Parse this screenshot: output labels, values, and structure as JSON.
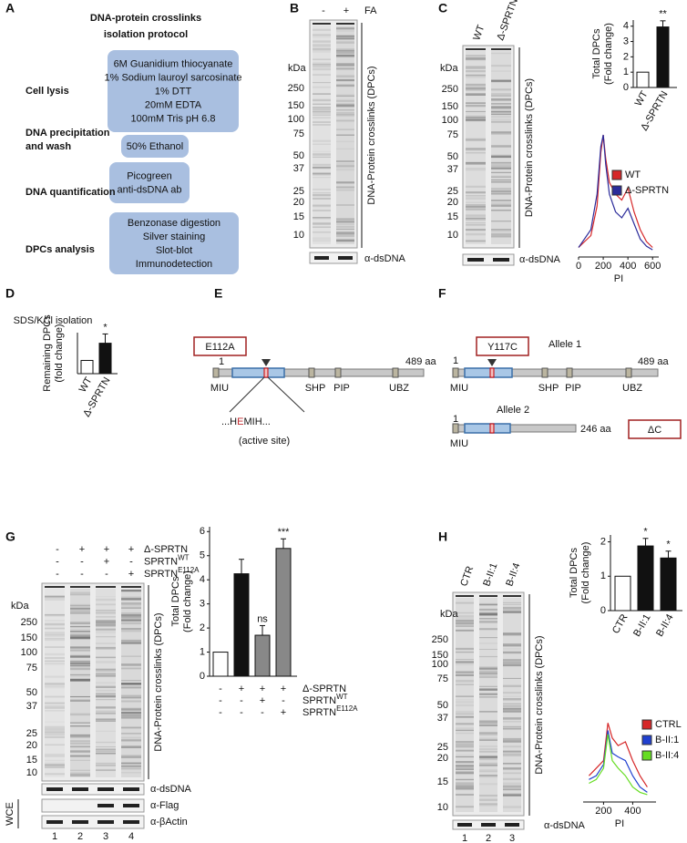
{
  "panels": {
    "a": {
      "label": "A",
      "title": [
        "DNA-protein crosslinks",
        "isolation protocol"
      ],
      "steps": [
        {
          "name": [
            "Cell lysis"
          ],
          "items": [
            "6M Guanidium thiocyanate",
            "1% Sodium lauroyl sarcosinate",
            "1% DTT",
            "20mM EDTA",
            "100mM Tris pH 6.8"
          ]
        },
        {
          "name": [
            "DNA precipitation",
            "and wash"
          ],
          "items": [
            "50% Ethanol"
          ]
        },
        {
          "name": [
            "DNA quantification"
          ],
          "items": [
            "Picogreen",
            "anti-dsDNA ab"
          ]
        },
        {
          "name": [
            "DPCs analysis"
          ],
          "items": [
            "Benzonase digestion",
            "Silver staining",
            "Slot-blot",
            "Immunodetection"
          ]
        }
      ]
    },
    "b": {
      "label": "B",
      "treatment": "FA",
      "lanes": [
        "-",
        "+"
      ],
      "kda": "kDa",
      "markers": [
        "250",
        "150",
        "100",
        "75",
        "50",
        "37",
        "25",
        "20",
        "15",
        "10"
      ],
      "side_label": "DNA-Protein crosslinks (DPCs)",
      "loading": "α-dsDNA"
    },
    "c": {
      "label": "C",
      "lanes": [
        "WT",
        "Δ-SPRTN"
      ],
      "kda": "kDa",
      "markers": [
        "250",
        "150",
        "100",
        "75",
        "50",
        "37",
        "25",
        "20",
        "15",
        "10"
      ],
      "side_label": "DNA-Protein crosslinks (DPCs)",
      "loading": "α-dsDNA"
    },
    "d": {
      "label": "D"
    },
    "e": {
      "label": "E",
      "mutation": "E112A",
      "start": "1",
      "length": "489 aa",
      "domains": [
        "MIU",
        "SHP",
        "PIP",
        "UBZ"
      ],
      "sequence": [
        "...H",
        "E",
        "MIH..."
      ],
      "site": "(active site)"
    },
    "f": {
      "label": "F",
      "mutation": "Y117C",
      "allele1": {
        "name": "Allele 1",
        "start": "1",
        "length": "489 aa",
        "domains": [
          "MIU",
          "SHP",
          "PIP",
          "UBZ"
        ]
      },
      "allele2": {
        "name": "Allele 2",
        "start": "1",
        "length": "246 aa",
        "domains": [
          "MIU"
        ],
        "tag": "ΔC"
      }
    },
    "g": {
      "label": "G",
      "conditions": [
        {
          "name": "Δ-SPRTN",
          "signs": [
            "-",
            "+",
            "+",
            "+"
          ]
        },
        {
          "name": "SPRTN",
          "sup": "WT",
          "signs": [
            "-",
            "-",
            "+",
            "-"
          ]
        },
        {
          "name": "SPRTN",
          "sup": "E112A",
          "signs": [
            "-",
            "-",
            "-",
            "+"
          ]
        }
      ],
      "kda": "kDa",
      "markers": [
        "250",
        "150",
        "100",
        "75",
        "50",
        "37",
        "25",
        "20",
        "15",
        "10"
      ],
      "side_label": "DNA-Protein crosslinks (DPCs)",
      "blots": [
        "α-dsDNA",
        "α-Flag",
        "α-βActin"
      ],
      "wce": "WCE",
      "lane_numbers": [
        "1",
        "2",
        "3",
        "4"
      ]
    },
    "h": {
      "label": "H",
      "lanes": [
        "CTR",
        "B-II:1",
        "B-II:4"
      ],
      "kda": "kDa",
      "markers": [
        "250",
        "150",
        "100",
        "75",
        "50",
        "37",
        "25",
        "20",
        "15",
        "10"
      ],
      "side_label": "DNA-Protein crosslinks (DPCs)",
      "loading": "α-dsDNA",
      "lane_numbers": [
        "1",
        "2",
        "3"
      ]
    }
  },
  "chart_data": [
    {
      "type": "bar",
      "ylabel": [
        "Total DPCs",
        "(Fold change)"
      ],
      "categories": [
        "WT",
        "Δ-SPRTN"
      ],
      "values": [
        1,
        3.95
      ],
      "errors": [
        null,
        0.4
      ],
      "annotations": [
        null,
        "**"
      ],
      "colors": [
        "#ffffff",
        "#111111"
      ],
      "ylim": [
        0,
        4.4
      ],
      "yticks": [
        0,
        1,
        2,
        3,
        4
      ]
    },
    {
      "type": "line",
      "xlabel": "PI",
      "x": [
        0,
        100,
        150,
        180,
        200,
        220,
        250,
        300,
        350,
        400,
        450,
        500,
        550,
        600
      ],
      "series": [
        {
          "name": "WT",
          "color": "#d62728",
          "values": [
            0.05,
            0.15,
            0.4,
            0.85,
            1.0,
            0.8,
            0.6,
            0.5,
            0.45,
            0.55,
            0.35,
            0.2,
            0.1,
            0.05
          ]
        },
        {
          "name": "Δ-SPRTN",
          "color": "#2b2b9a",
          "values": [
            0.05,
            0.2,
            0.5,
            0.9,
            1.0,
            0.75,
            0.5,
            0.35,
            0.3,
            0.38,
            0.25,
            0.12,
            0.06,
            0.03
          ]
        }
      ],
      "xlim": [
        0,
        650
      ],
      "xticks": [
        0,
        200,
        400,
        600
      ],
      "ylim": [
        0,
        1.1
      ]
    },
    {
      "type": "bar",
      "title": "SDS/KCl isolation",
      "ylabel": [
        "Remaining DPCs",
        "(fold change)"
      ],
      "categories": [
        "WT",
        "Δ-SPRTN"
      ],
      "values": [
        1,
        2.3
      ],
      "errors": [
        null,
        0.7
      ],
      "annotations": [
        null,
        "*"
      ],
      "colors": [
        "#ffffff",
        "#111111"
      ],
      "ylim": [
        0,
        3.1
      ]
    },
    {
      "type": "bar",
      "ylabel": [
        "Total DPCs",
        "(Fold change)"
      ],
      "categories": [
        null,
        null,
        null,
        null
      ],
      "values": [
        1,
        4.25,
        1.7,
        5.3
      ],
      "errors": [
        null,
        0.6,
        0.4,
        0.4
      ],
      "annotations": [
        null,
        null,
        "ns",
        "***"
      ],
      "colors": [
        "#ffffff",
        "#111111",
        "#888888",
        "#888888"
      ],
      "ylim": [
        0,
        6.2
      ],
      "yticks": [
        0,
        1,
        2,
        3,
        4,
        5,
        6
      ],
      "conditions": [
        {
          "name": "Δ-SPRTN",
          "signs": [
            "-",
            "+",
            "+",
            "+"
          ]
        },
        {
          "name": "SPRTN",
          "sup": "WT",
          "signs": [
            "-",
            "-",
            "+",
            "-"
          ]
        },
        {
          "name": "SPRTN",
          "sup": "E112A",
          "signs": [
            "-",
            "-",
            "-",
            "+"
          ]
        }
      ]
    },
    {
      "type": "bar",
      "ylabel": [
        "Total DPCs",
        "(Fold change)"
      ],
      "categories": [
        "CTR",
        "B-II:1",
        "B-II:4"
      ],
      "values": [
        1,
        1.88,
        1.53
      ],
      "errors": [
        null,
        0.22,
        0.2
      ],
      "annotations": [
        null,
        "*",
        "*"
      ],
      "colors": [
        "#ffffff",
        "#111111",
        "#111111"
      ],
      "ylim": [
        0,
        2.2
      ],
      "yticks": [
        0,
        1,
        2
      ]
    },
    {
      "type": "line",
      "xlabel": "PI",
      "x": [
        100,
        150,
        200,
        230,
        260,
        300,
        350,
        400,
        450,
        500
      ],
      "series": [
        {
          "name": "CTRL",
          "color": "#d62728",
          "values": [
            0.3,
            0.4,
            0.5,
            1.0,
            0.8,
            0.7,
            0.75,
            0.5,
            0.3,
            0.15
          ]
        },
        {
          "name": "B-II:1",
          "color": "#2040d0",
          "values": [
            0.25,
            0.3,
            0.45,
            0.9,
            0.6,
            0.55,
            0.5,
            0.3,
            0.15,
            0.08
          ]
        },
        {
          "name": "B-II:4",
          "color": "#66dd22",
          "values": [
            0.2,
            0.25,
            0.4,
            0.85,
            0.5,
            0.4,
            0.3,
            0.15,
            0.08,
            0.05
          ]
        }
      ],
      "xlim": [
        60,
        560
      ],
      "xticks": [
        200,
        400
      ],
      "ylim": [
        0,
        1.1
      ]
    }
  ]
}
